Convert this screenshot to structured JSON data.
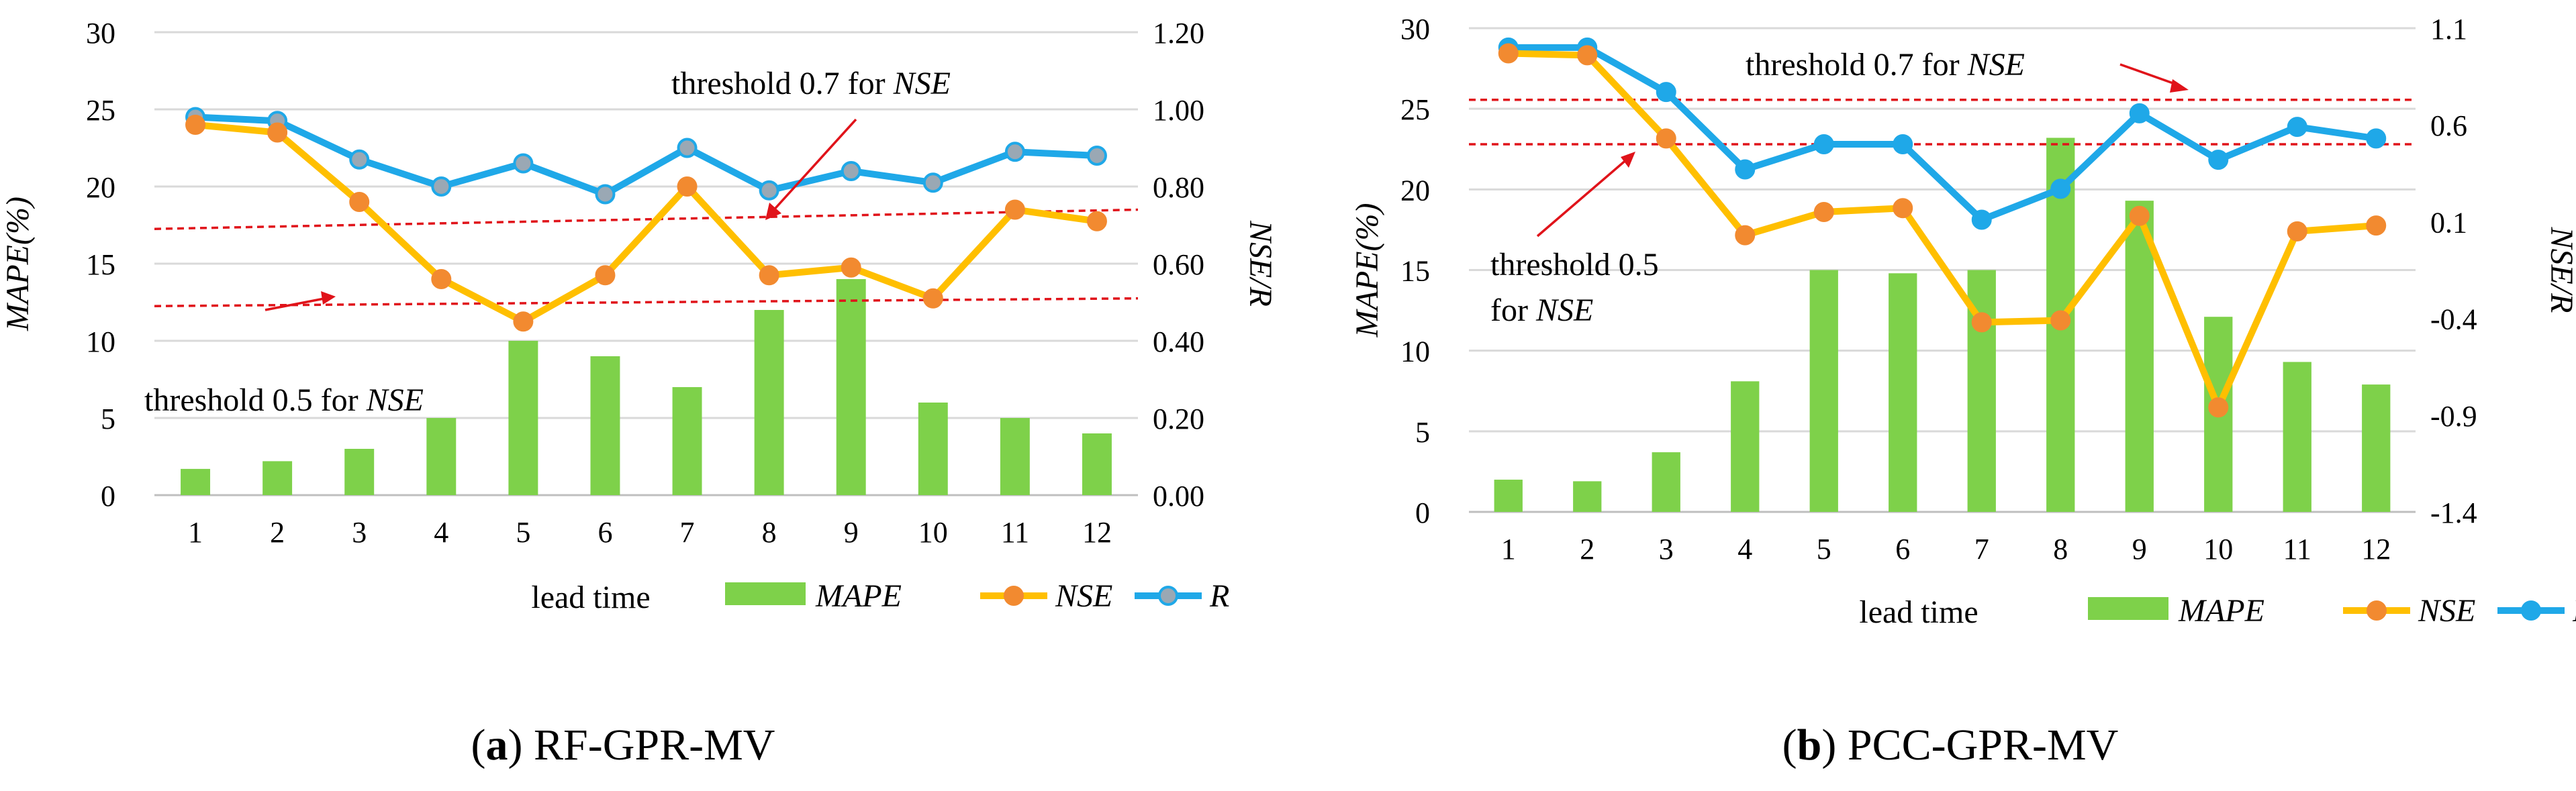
{
  "chart_data": [
    {
      "type": "bar+line",
      "panel": "a",
      "caption_letter": "a",
      "caption_text": "RF-GPR-MV",
      "categories": [
        "1",
        "2",
        "3",
        "4",
        "5",
        "6",
        "7",
        "8",
        "9",
        "10",
        "11",
        "12"
      ],
      "xlabel": "lead time",
      "ylabel_left": "MAPE(%)",
      "ylabel_right": "NSE/R",
      "ylim_left": [
        0,
        30
      ],
      "ylim_right": [
        0.0,
        1.2
      ],
      "left_ticks": [
        "0",
        "5",
        "10",
        "15",
        "20",
        "25",
        "30"
      ],
      "right_ticks": [
        "0.00",
        "0.20",
        "0.40",
        "0.60",
        "0.80",
        "1.00",
        "1.20"
      ],
      "series": [
        {
          "name": "MAPE",
          "kind": "bar",
          "axis": "left",
          "values": [
            1.7,
            2.2,
            3.0,
            5.0,
            10.0,
            9.0,
            7.0,
            12.0,
            14.0,
            6.0,
            5.0,
            4.0
          ]
        },
        {
          "name": "NSE",
          "kind": "line",
          "axis": "right",
          "values": [
            0.96,
            0.94,
            0.76,
            0.56,
            0.45,
            0.57,
            0.8,
            0.57,
            0.59,
            0.51,
            0.74,
            0.71
          ]
        },
        {
          "name": "R",
          "kind": "line",
          "axis": "right",
          "values": [
            0.98,
            0.97,
            0.87,
            0.8,
            0.86,
            0.78,
            0.9,
            0.79,
            0.84,
            0.81,
            0.89,
            0.88
          ]
        }
      ],
      "thresholds": [
        {
          "label": "threshold 0.7 for",
          "label_italic": "NSE",
          "start": 0.69,
          "end": 0.74
        },
        {
          "label": "threshold 0.5 for",
          "label_italic": "NSE",
          "start": 0.49,
          "end": 0.51
        }
      ],
      "legend": [
        "MAPE",
        "NSE",
        "R"
      ]
    },
    {
      "type": "bar+line",
      "panel": "b",
      "caption_letter": "b",
      "caption_text": "PCC-GPR-MV",
      "categories": [
        "1",
        "2",
        "3",
        "4",
        "5",
        "6",
        "7",
        "8",
        "9",
        "10",
        "11",
        "12"
      ],
      "xlabel": "lead time",
      "ylabel_left": "MAPE(%)",
      "ylabel_right": "NSE/R",
      "ylim_left": [
        0,
        30
      ],
      "ylim_right": [
        -1.4,
        1.1
      ],
      "left_ticks": [
        "0",
        "5",
        "10",
        "15",
        "20",
        "25",
        "30"
      ],
      "right_ticks": [
        "-1.4",
        "-0.9",
        "-0.4",
        "0.1",
        "0.6",
        "1.1"
      ],
      "series": [
        {
          "name": "MAPE",
          "kind": "bar",
          "axis": "left",
          "values": [
            2.0,
            1.9,
            3.7,
            8.1,
            15.0,
            14.8,
            15.0,
            23.2,
            19.3,
            12.1,
            9.3,
            7.9
          ]
        },
        {
          "name": "NSE",
          "kind": "line",
          "axis": "right",
          "values": [
            0.97,
            0.96,
            0.53,
            0.03,
            0.15,
            0.17,
            -0.42,
            -0.41,
            0.13,
            -0.86,
            0.05,
            0.08
          ]
        },
        {
          "name": "R",
          "kind": "line",
          "axis": "right",
          "values": [
            1.0,
            1.0,
            0.77,
            0.37,
            0.5,
            0.5,
            0.11,
            0.27,
            0.66,
            0.42,
            0.59,
            0.53
          ]
        }
      ],
      "thresholds": [
        {
          "label": "threshold 0.7 for",
          "label_italic": "NSE",
          "start": 0.73,
          "end": 0.73
        },
        {
          "label": "threshold 0.5",
          "label_line2": "for",
          "label_italic": "NSE",
          "start": 0.5,
          "end": 0.5
        }
      ],
      "legend": [
        "MAPE",
        "NSE",
        "R"
      ]
    }
  ]
}
